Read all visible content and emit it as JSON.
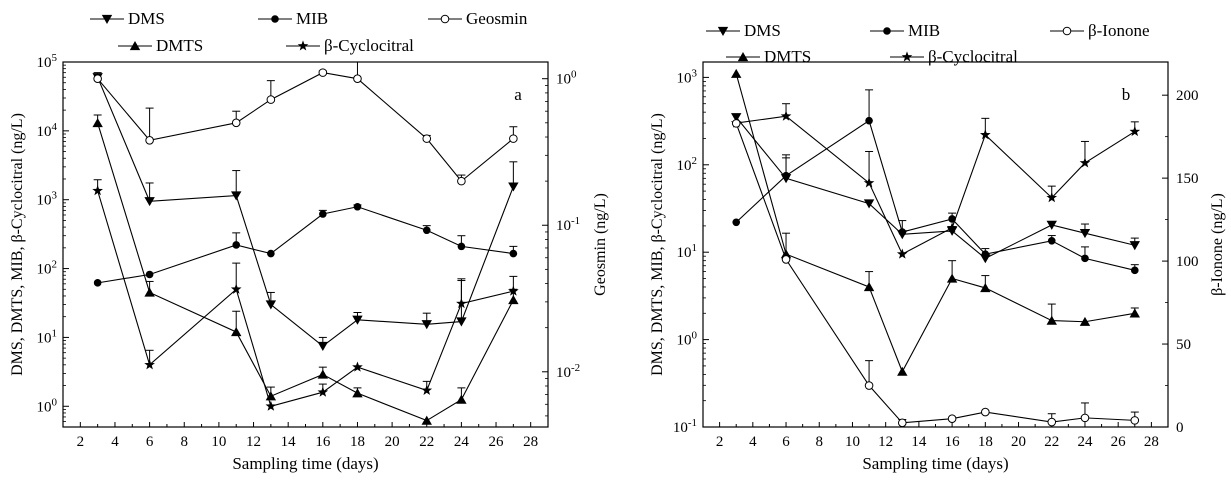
{
  "chart_data": [
    {
      "type": "line",
      "panel_label": "a",
      "xlabel": "Sampling time (days)",
      "ylabel": "DMS, DMTS, MIB, β-Cyclocitral (ng/L)",
      "y2label": "Geosmin (ng/L)",
      "xlim": [
        1,
        29
      ],
      "xticks": [
        2,
        4,
        6,
        8,
        10,
        12,
        14,
        16,
        18,
        20,
        22,
        24,
        26,
        28
      ],
      "yscale": "log",
      "ylim": [
        0.5,
        100000
      ],
      "yticks": [
        1,
        10,
        100,
        1000,
        10000,
        100000
      ],
      "ytick_labels": [
        "10⁰",
        "10¹",
        "10²",
        "10³",
        "10⁴",
        "10⁵"
      ],
      "y2scale": "log",
      "y2lim": [
        0.0042,
        1.3
      ],
      "y2ticks": [
        0.01,
        0.1,
        1
      ],
      "y2tick_labels": [
        "10⁻²",
        "10⁻¹",
        "10⁰"
      ],
      "legend": "top-outside",
      "grid": false,
      "series": [
        {
          "name": "DMS",
          "marker": "triangle-down",
          "axis": "left",
          "x": [
            3,
            6,
            11,
            13,
            16,
            18,
            22,
            24,
            27
          ],
          "y": [
            60000,
            950,
            1150,
            30,
            7.5,
            18,
            15.5,
            17,
            1550
          ],
          "err": [
            0,
            800,
            1500,
            15,
            2.5,
            5,
            7,
            50,
            2000
          ]
        },
        {
          "name": "DMTS",
          "marker": "triangle-up",
          "axis": "left",
          "x": [
            3,
            6,
            11,
            13,
            16,
            18,
            22,
            24,
            27
          ],
          "y": [
            13000,
            45,
            12,
            1.4,
            2.9,
            1.55,
            0.62,
            1.25,
            35
          ],
          "err": [
            4000,
            20,
            12,
            0.5,
            0.8,
            0.3,
            0,
            0.6,
            15
          ]
        },
        {
          "name": "MIB",
          "marker": "filled-circle",
          "axis": "left",
          "x": [
            3,
            6,
            11,
            13,
            16,
            18,
            22,
            24,
            27
          ],
          "y": [
            62,
            82,
            220,
            165,
            620,
            790,
            360,
            210,
            165
          ],
          "err": [
            0,
            0,
            110,
            0,
            80,
            50,
            60,
            90,
            45
          ]
        },
        {
          "name": "β-Cyclocitral",
          "marker": "star",
          "axis": "left",
          "x": [
            3,
            6,
            11,
            13,
            16,
            18,
            22,
            24,
            27
          ],
          "y": [
            1350,
            4,
            50,
            1,
            1.6,
            3.7,
            1.7,
            31,
            47
          ],
          "err": [
            600,
            2.5,
            70,
            0,
            0.5,
            0,
            0.6,
            40,
            30
          ]
        },
        {
          "name": "Geosmin",
          "marker": "open-circle",
          "axis": "right",
          "x": [
            3,
            6,
            11,
            13,
            16,
            18,
            22,
            24,
            27
          ],
          "y": [
            1.0,
            0.38,
            0.5,
            0.72,
            1.1,
            1.0,
            0.39,
            0.2,
            0.39
          ],
          "err": [
            0.1,
            0.25,
            0.1,
            0.25,
            0.03,
            0.3,
            0.02,
            0.02,
            0.08
          ]
        }
      ]
    },
    {
      "type": "line",
      "panel_label": "b",
      "xlabel": "Sampling time (days)",
      "ylabel": "DMS, DMTS, MIB, β-Cyclocitral (ng/L)",
      "y2label": "β-Ionone (ng/L)",
      "xlim": [
        1,
        29
      ],
      "xticks": [
        2,
        4,
        6,
        8,
        10,
        12,
        14,
        16,
        18,
        20,
        22,
        24,
        26,
        28
      ],
      "yscale": "log",
      "ylim": [
        0.1,
        1500
      ],
      "yticks": [
        0.1,
        1,
        10,
        100,
        1000
      ],
      "ytick_labels": [
        "10⁻¹",
        "10⁰",
        "10¹",
        "10²",
        "10³"
      ],
      "y2scale": "linear",
      "y2lim": [
        0,
        220
      ],
      "y2ticks": [
        0,
        50,
        100,
        150,
        200
      ],
      "y2tick_labels": [
        "0",
        "50",
        "100",
        "150",
        "200"
      ],
      "legend": "top-outside",
      "grid": false,
      "series": [
        {
          "name": "DMS",
          "marker": "triangle-down",
          "axis": "left",
          "x": [
            3,
            6,
            11,
            13,
            16,
            18,
            22,
            24,
            27
          ],
          "y": [
            350,
            70,
            36,
            16,
            17.5,
            8.5,
            20.5,
            16.5,
            12
          ],
          "err": [
            0,
            50,
            0,
            0,
            0,
            0,
            0,
            4.5,
            2.5
          ]
        },
        {
          "name": "DMTS",
          "marker": "triangle-up",
          "axis": "left",
          "x": [
            3,
            6,
            11,
            13,
            16,
            18,
            22,
            24,
            27
          ],
          "y": [
            1100,
            9.5,
            4,
            0.43,
            5,
            3.9,
            1.65,
            1.6,
            2
          ],
          "err": [
            0,
            7,
            2,
            0,
            3,
            1.5,
            0.9,
            0,
            0.3
          ]
        },
        {
          "name": "MIB",
          "marker": "filled-circle",
          "axis": "left",
          "x": [
            3,
            6,
            11,
            13,
            16,
            18,
            22,
            24,
            27
          ],
          "y": [
            22,
            75,
            320,
            17,
            24,
            9.5,
            13.5,
            8.5,
            6.2
          ],
          "err": [
            0,
            55,
            400,
            6,
            4,
            1.5,
            2,
            3,
            1
          ]
        },
        {
          "name": "β-Cyclocitral",
          "marker": "star",
          "axis": "left",
          "x": [
            3,
            6,
            11,
            13,
            16,
            18,
            22,
            24,
            27
          ],
          "y": [
            300,
            360,
            62,
            9.5,
            19,
            220,
            42,
            105,
            240
          ],
          "err": [
            0,
            140,
            80,
            0,
            0,
            120,
            15,
            80,
            70
          ]
        },
        {
          "name": "β-Ionone",
          "marker": "open-circle",
          "axis": "right",
          "x": [
            3,
            6,
            11,
            13,
            16,
            18,
            22,
            24,
            27
          ],
          "y": [
            183,
            101,
            25,
            2.5,
            5,
            9,
            3,
            5.5,
            4
          ],
          "err": [
            0,
            0,
            15,
            2,
            0,
            0,
            5,
            9,
            5
          ]
        }
      ]
    }
  ]
}
